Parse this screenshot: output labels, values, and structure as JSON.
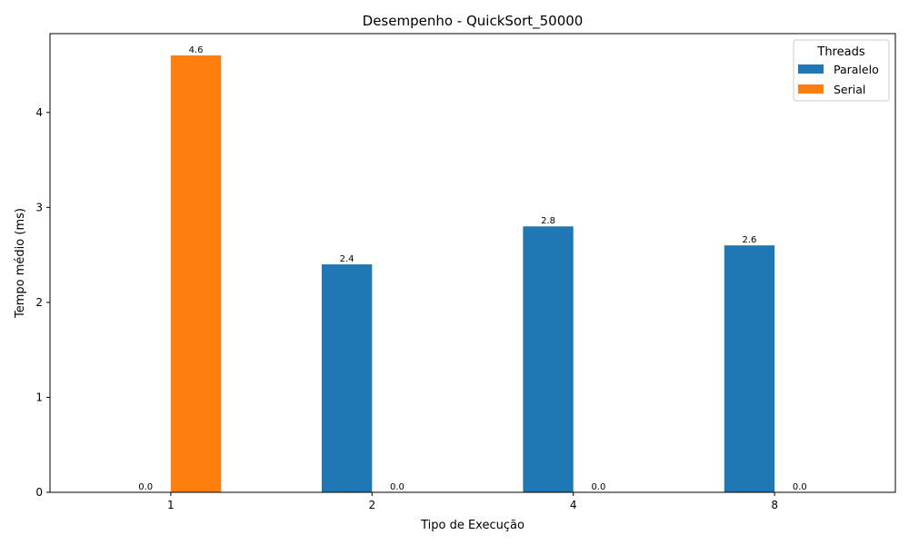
{
  "chart_data": {
    "type": "bar",
    "title": "Desempenho - QuickSort_50000",
    "xlabel": "Tipo de Execução",
    "ylabel": "Tempo médio (ms)",
    "categories": [
      "1",
      "2",
      "4",
      "8"
    ],
    "series": [
      {
        "name": "Paralelo",
        "color": "#1f77b4",
        "values": [
          0.0,
          2.4,
          2.8,
          2.6
        ],
        "labels": [
          "0.0",
          "2.4",
          "2.8",
          "2.6"
        ]
      },
      {
        "name": "Serial",
        "color": "#ff7f0e",
        "values": [
          4.6,
          0.0,
          0.0,
          0.0
        ],
        "labels": [
          "4.6",
          "0.0",
          "0.0",
          "0.0"
        ]
      }
    ],
    "ylim": [
      0,
      4.83
    ],
    "yticks": [
      0,
      1,
      2,
      3,
      4
    ],
    "legend": {
      "title": "Threads",
      "position": "top-right"
    },
    "grid": false
  }
}
